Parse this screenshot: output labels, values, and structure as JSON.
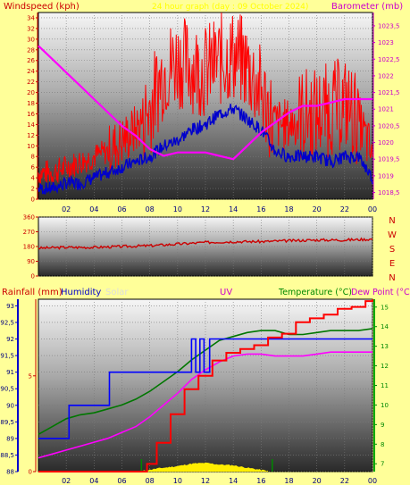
{
  "panels": {
    "wind": {
      "left_title": "Windspeed (kph)",
      "center_title": "24 hour graph (day : 09 October 2024)",
      "right_title": "Barometer (mb)"
    },
    "direction": {
      "compass": [
        "N",
        "W",
        "S",
        "E",
        "N"
      ]
    },
    "bottom": {
      "title_rain": "Rainfall (mm)",
      "title_humidity": "Humidity",
      "title_solar": "Solar",
      "title_uv": "UV",
      "title_temp": "Temperature (°C)",
      "title_dew": "Dew Point (°C)"
    }
  },
  "colors": {
    "background": "#ffff99",
    "wind_gust": "#ff0000",
    "wind_avg": "#0000cc",
    "barometer": "#ff00ff",
    "direction": "#cc0000",
    "rainfall": "#ff0000",
    "humidity": "#0000ff",
    "temperature": "#007700",
    "dew_point": "#ff00ff",
    "solar": "#ffee00",
    "uv": "#008800",
    "title_wind": "#cc0000",
    "title_center": "#ffff00",
    "title_baro": "#cc00cc",
    "title_solar": "#dddddd",
    "title_uv": "#cc00cc",
    "title_temp": "#008800",
    "title_dew": "#cc00cc"
  },
  "chart_data": [
    {
      "type": "line",
      "name": "wind-barometer",
      "x_ticks": [
        "02",
        "04",
        "06",
        "08",
        "10",
        "12",
        "14",
        "16",
        "18",
        "20",
        "22",
        "00"
      ],
      "y_left_ticks": [
        "0",
        "2",
        "4",
        "6",
        "8",
        "10",
        "12",
        "14",
        "16",
        "18",
        "20",
        "22",
        "24",
        "26",
        "28",
        "30",
        "32",
        "34"
      ],
      "y_left_range": [
        0,
        35
      ],
      "y_right_ticks": [
        "1018,5",
        "1019",
        "1019,5",
        "1020",
        "1020,5",
        "1021",
        "1021,5",
        "1022",
        "1022,5",
        "1023",
        "1023,5"
      ],
      "y_right_range": [
        1018.3,
        1023.9
      ],
      "series": [
        {
          "key": "gust",
          "x": [
            0,
            1,
            2,
            3,
            4,
            5,
            6,
            7,
            8,
            9,
            10,
            11,
            12,
            13,
            14,
            15,
            16,
            17,
            18,
            19,
            20,
            21,
            22,
            23,
            24
          ],
          "values": [
            5,
            5,
            6,
            7,
            8,
            9,
            11,
            13,
            17,
            24,
            26,
            25,
            24,
            26,
            27,
            25,
            20,
            14,
            14,
            16,
            16,
            17,
            18,
            15,
            8
          ]
        },
        {
          "key": "avg",
          "x": [
            0,
            1,
            2,
            3,
            4,
            5,
            6,
            7,
            8,
            9,
            10,
            11,
            12,
            13,
            14,
            15,
            16,
            17,
            18,
            19,
            20,
            21,
            22,
            23,
            24
          ],
          "values": [
            2,
            2,
            3,
            3,
            4,
            5,
            6,
            7,
            8,
            10,
            11,
            13,
            14,
            16,
            17,
            15,
            13,
            9,
            8,
            8,
            8,
            7,
            8,
            8,
            4
          ]
        },
        {
          "key": "barometer",
          "axis": "right",
          "x": [
            0,
            1,
            2,
            3,
            4,
            5,
            6,
            7,
            8,
            9,
            10,
            11,
            12,
            13,
            14,
            15,
            16,
            17,
            18,
            19,
            20,
            21,
            22,
            23,
            24
          ],
          "values": [
            1022.9,
            1022.5,
            1022.1,
            1021.7,
            1021.3,
            1020.9,
            1020.5,
            1020.2,
            1019.8,
            1019.6,
            1019.7,
            1019.7,
            1019.7,
            1019.6,
            1019.5,
            1019.9,
            1020.3,
            1020.6,
            1020.9,
            1021.1,
            1021.1,
            1021.2,
            1021.3,
            1021.3,
            1021.3
          ]
        }
      ]
    },
    {
      "type": "line",
      "name": "wind-direction",
      "y_ticks": [
        "360",
        "270",
        "180",
        "90",
        "0"
      ],
      "y_range": [
        0,
        360
      ],
      "x": [
        0,
        2,
        4,
        6,
        8,
        10,
        12,
        14,
        16,
        18,
        20,
        22,
        24
      ],
      "values": [
        170,
        175,
        175,
        180,
        185,
        195,
        205,
        210,
        210,
        215,
        220,
        220,
        225
      ]
    },
    {
      "type": "line",
      "name": "temperature-humidity-rain",
      "x_ticks": [
        "02",
        "04",
        "06",
        "08",
        "10",
        "12",
        "14",
        "16",
        "18",
        "20",
        "22",
        "00"
      ],
      "y_humidity_ticks": [
        "88",
        "88,5",
        "89",
        "89,5",
        "90",
        "90,5",
        "91",
        "91,5",
        "92",
        "92,5",
        "93"
      ],
      "y_humidity_range": [
        88,
        93.2
      ],
      "y_rain_ticks": [
        "0",
        "5"
      ],
      "y_rain_range": [
        0,
        9
      ],
      "y_temp_ticks": [
        "7",
        "8",
        "9",
        "10",
        "11",
        "12",
        "13",
        "14",
        "15"
      ],
      "y_temp_range": [
        6.6,
        15.4
      ],
      "series": [
        {
          "key": "humidity",
          "x": [
            0,
            2.2,
            2.2,
            5.1,
            5.1,
            11.0,
            11.0,
            11.3,
            11.3,
            11.6,
            11.6,
            11.9,
            11.9,
            12.3,
            12.3,
            24
          ],
          "values": [
            89,
            89,
            90,
            90,
            91,
            91,
            92,
            92,
            91,
            91,
            92,
            92,
            91,
            91,
            92,
            92
          ]
        },
        {
          "key": "temperature",
          "x": [
            0,
            1,
            2,
            3,
            4,
            5,
            6,
            7,
            8,
            9,
            10,
            11,
            12,
            13,
            14,
            15,
            16,
            17,
            18,
            19,
            20,
            21,
            22,
            23,
            24
          ],
          "values": [
            8.5,
            8.9,
            9.3,
            9.5,
            9.6,
            9.8,
            10.0,
            10.3,
            10.7,
            11.2,
            11.7,
            12.3,
            12.8,
            13.3,
            13.5,
            13.7,
            13.8,
            13.8,
            13.6,
            13.6,
            13.7,
            13.8,
            13.8,
            13.8,
            13.9
          ]
        },
        {
          "key": "dew_point",
          "x": [
            0,
            1,
            2,
            3,
            4,
            5,
            6,
            7,
            8,
            9,
            10,
            11,
            12,
            13,
            14,
            15,
            16,
            17,
            18,
            19,
            20,
            21,
            22,
            23,
            24
          ],
          "values": [
            7.3,
            7.5,
            7.7,
            7.9,
            8.1,
            8.3,
            8.6,
            8.9,
            9.4,
            10.0,
            10.6,
            11.3,
            11.8,
            12.2,
            12.5,
            12.6,
            12.6,
            12.5,
            12.5,
            12.5,
            12.6,
            12.7,
            12.7,
            12.7,
            12.7
          ]
        },
        {
          "key": "rainfall",
          "x": [
            0,
            4,
            7.3,
            7.8,
            8.5,
            9.5,
            10.5,
            11.5,
            12.5,
            13.5,
            14.5,
            15.5,
            16.5,
            17.5,
            18.5,
            19.5,
            20.5,
            21.5,
            22.5,
            23.5,
            24
          ],
          "values": [
            0,
            0,
            0,
            0.4,
            1.5,
            3.0,
            4.3,
            5.0,
            5.8,
            6.2,
            6.4,
            6.6,
            7.0,
            7.2,
            7.8,
            8.0,
            8.2,
            8.5,
            8.6,
            8.9,
            9.0
          ]
        },
        {
          "key": "solar",
          "x": [
            7.5,
            8.5,
            10,
            11,
            12,
            13,
            14,
            15,
            16.5
          ],
          "values": [
            0,
            0.3,
            0.6,
            0.9,
            1.0,
            0.8,
            0.7,
            0.4,
            0
          ]
        }
      ]
    }
  ]
}
